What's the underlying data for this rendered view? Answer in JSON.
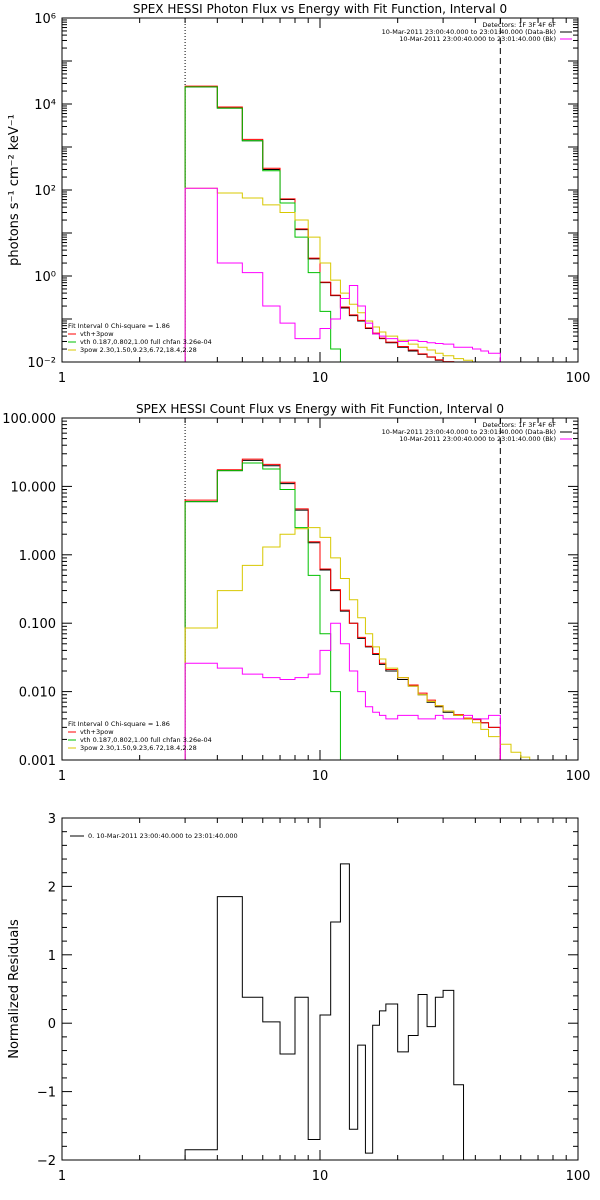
{
  "chart_data": [
    {
      "type": "line",
      "title": "SPEX HESSI Photon Flux vs Energy with Fit Function, Interval 0",
      "ylabel": "photons s⁻¹ cm⁻² keV⁻¹",
      "xlabel": "",
      "x_scale": "log",
      "y_scale": "log",
      "xlim": [
        1,
        100
      ],
      "ylim": [
        0.01,
        1000000
      ],
      "x_ticks": [
        1,
        10,
        100
      ],
      "x_tick_labels": [
        "1",
        "10",
        "100"
      ],
      "y_ticks": [
        0.01,
        1,
        100,
        10000,
        1000000
      ],
      "y_tick_labels": [
        "10⁻²",
        "10⁰",
        "10²",
        "10⁴",
        "10⁶"
      ],
      "vlines": [
        {
          "x": 3,
          "style": "dotted"
        },
        {
          "x": 50,
          "style": "dashed"
        }
      ],
      "legend_top_right": [
        {
          "text": "Detectors: 1F 3F 4F 6F",
          "color": "#000000"
        },
        {
          "text": "10-Mar-2011 23:00:40.000 to 23:01:40.000 (Data-Bk)",
          "color": "#000000"
        },
        {
          "text": "10-Mar-2011 23:00:40.000 to 23:01:40.000 (Bk)",
          "color": "#ff00ff"
        }
      ],
      "legend_bottom_left": [
        {
          "text": "Fit Interval 0   Chi-square = 1.86",
          "color": "#000000"
        },
        {
          "text": "vth+3pow",
          "color": "#ff0000"
        },
        {
          "text": "vth 0.187,0.802,1.00  full chfan 3.26e-04",
          "color": "#00c000"
        },
        {
          "text": "3pow 2.30,1.50,9.23,6.72,18.4,2.28",
          "color": "#d8c800"
        }
      ],
      "edges": [
        3,
        4,
        5,
        6,
        7,
        8,
        9,
        10,
        11,
        12,
        13,
        14,
        15,
        16,
        17,
        18,
        20,
        22,
        24,
        26,
        28,
        30,
        33,
        36,
        39,
        42,
        45,
        50,
        55,
        60
      ],
      "series": [
        {
          "name": "data-bk",
          "color": "#000000",
          "values": [
            25000,
            8000,
            1400,
            300,
            60,
            12,
            2.5,
            0.7,
            0.35,
            0.18,
            0.12,
            0.09,
            0.06,
            0.045,
            0.035,
            0.028,
            0.022,
            0.018,
            0.015,
            0.013,
            0.011,
            0.01,
            0.01,
            0.01
          ]
        },
        {
          "name": "vth+3pow",
          "color": "#ff0000",
          "values": [
            26000,
            8500,
            1500,
            320,
            62,
            12.5,
            2.6,
            0.72,
            0.36,
            0.19,
            0.125,
            0.093,
            0.062,
            0.047,
            0.036,
            0.029,
            0.023,
            0.019,
            0.0155,
            0.0132,
            0.0113,
            0.0102,
            0.01,
            0.01
          ]
        },
        {
          "name": "vth",
          "color": "#00c000",
          "values": [
            25000,
            8000,
            1400,
            280,
            50,
            8,
            1.2,
            0.15,
            0.02,
            0.01
          ]
        },
        {
          "name": "3pow",
          "color": "#d8c800",
          "values": [
            110,
            85,
            65,
            45,
            30,
            20,
            8,
            2,
            0.8,
            0.4,
            0.22,
            0.14,
            0.09,
            0.065,
            0.05,
            0.04,
            0.032,
            0.026,
            0.022,
            0.019,
            0.016,
            0.014,
            0.012,
            0.011,
            0.01,
            0.01,
            0.01,
            0.01,
            0.01
          ]
        },
        {
          "name": "background",
          "color": "#ff00ff",
          "values": [
            110,
            2,
            1.2,
            0.2,
            0.08,
            0.035,
            0.035,
            0.06,
            0.1,
            0.3,
            0.6,
            0.2,
            0.08,
            0.045,
            0.04,
            0.035,
            0.03,
            0.032,
            0.03,
            0.028,
            0.027,
            0.026,
            0.022,
            0.022,
            0.02,
            0.018,
            0.016
          ]
        }
      ]
    },
    {
      "type": "line",
      "title": "SPEX HESSI Count Flux vs Energy with Fit Function, Interval 0",
      "ylabel": "",
      "xlabel": "",
      "x_scale": "log",
      "y_scale": "log",
      "xlim": [
        1,
        100
      ],
      "ylim": [
        0.001,
        100
      ],
      "x_ticks": [
        1,
        10,
        100
      ],
      "x_tick_labels": [
        "1",
        "10",
        "100"
      ],
      "y_ticks": [
        0.001,
        0.01,
        0.1,
        1,
        10,
        100
      ],
      "y_tick_labels": [
        "0.001",
        "0.010",
        "0.100",
        "1.000",
        "10.000",
        "100.000"
      ],
      "vlines": [
        {
          "x": 3,
          "style": "dotted"
        },
        {
          "x": 50,
          "style": "dashed"
        }
      ],
      "legend_top_right": [
        {
          "text": "Detectors: 1F 3F 4F 6F",
          "color": "#000000"
        },
        {
          "text": "10-Mar-2011 23:00:40.000 to 23:01:40.000 (Data-Bk)",
          "color": "#000000"
        },
        {
          "text": "10-Mar-2011 23:00:40.000 to 23:01:40.000 (Bk)",
          "color": "#ff00ff"
        }
      ],
      "legend_bottom_left": [
        {
          "text": "Fit Interval 0   Chi-square = 1.86",
          "color": "#000000"
        },
        {
          "text": "vth+3pow",
          "color": "#ff0000"
        },
        {
          "text": "vth 0.187,0.802,1.00  full chfan 3.26e-04",
          "color": "#00c000"
        },
        {
          "text": "3pow 2.30,1.50,9.23,6.72,18.4,2.28",
          "color": "#d8c800"
        }
      ],
      "edges": [
        3,
        4,
        5,
        6,
        7,
        8,
        9,
        10,
        11,
        12,
        13,
        14,
        15,
        16,
        17,
        18,
        20,
        22,
        24,
        26,
        28,
        30,
        33,
        36,
        39,
        42,
        45,
        50,
        55,
        60,
        65,
        70,
        80,
        90
      ],
      "series": [
        {
          "name": "data-bk",
          "color": "#000000",
          "values": [
            6,
            17,
            24,
            20,
            11,
            4.5,
            1.5,
            0.6,
            0.3,
            0.15,
            0.1,
            0.06,
            0.045,
            0.035,
            0.025,
            0.02,
            0.015,
            0.012,
            0.009,
            0.007,
            0.006,
            0.005,
            0.0045,
            0.004,
            0.004,
            0.0035,
            0.003
          ]
        },
        {
          "name": "vth+3pow",
          "color": "#ff0000",
          "values": [
            6.3,
            17.5,
            25,
            21,
            11.5,
            4.7,
            1.55,
            0.62,
            0.31,
            0.155,
            0.1,
            0.062,
            0.046,
            0.036,
            0.026,
            0.021,
            0.016,
            0.0125,
            0.0095,
            0.0075,
            0.0062,
            0.0052,
            0.0046,
            0.0041,
            0.0039,
            0.0035,
            0.003
          ]
        },
        {
          "name": "vth",
          "color": "#00c000",
          "values": [
            6,
            17,
            22,
            18,
            9,
            2.5,
            0.5,
            0.07,
            0.01,
            0.001
          ]
        },
        {
          "name": "3pow",
          "color": "#d8c800",
          "values": [
            0.085,
            0.3,
            0.7,
            1.3,
            2,
            2.4,
            2.5,
            1.8,
            0.9,
            0.45,
            0.22,
            0.12,
            0.07,
            0.045,
            0.03,
            0.022,
            0.016,
            0.012,
            0.009,
            0.0072,
            0.0062,
            0.0052,
            0.0045,
            0.004,
            0.0035,
            0.0028,
            0.0022,
            0.0017,
            0.0013,
            0.0011,
            0.001,
            0.001,
            0.001
          ]
        },
        {
          "name": "background",
          "color": "#ff00ff",
          "values": [
            0.026,
            0.022,
            0.018,
            0.016,
            0.015,
            0.016,
            0.018,
            0.04,
            0.1,
            0.05,
            0.02,
            0.01,
            0.006,
            0.005,
            0.0045,
            0.004,
            0.0045,
            0.0045,
            0.004,
            0.004,
            0.0045,
            0.004,
            0.004,
            0.0045,
            0.004,
            0.004,
            0.0045
          ]
        }
      ]
    },
    {
      "type": "line",
      "title": "",
      "ylabel": "Normalized Residuals",
      "xlabel": "",
      "x_scale": "log",
      "y_scale": "linear",
      "xlim": [
        1,
        100
      ],
      "ylim": [
        -2,
        3
      ],
      "x_ticks": [
        1,
        10,
        100
      ],
      "x_tick_labels": [
        "1",
        "10",
        "100"
      ],
      "y_ticks": [
        -2,
        -1,
        0,
        1,
        2,
        3
      ],
      "y_tick_labels": [
        "−2",
        "−1",
        "0",
        "1",
        "2",
        "3"
      ],
      "legend_top_left": [
        {
          "text": "0. 10-Mar-2011 23:00:40.000 to 23:01:40.000",
          "color": "#000000"
        }
      ],
      "edges": [
        3,
        4,
        5,
        6,
        7,
        8,
        9,
        10,
        11,
        12,
        13,
        14,
        15,
        16,
        17,
        18,
        20,
        22,
        24,
        26,
        28,
        30,
        33,
        36,
        39,
        42,
        45,
        50
      ],
      "series": [
        {
          "name": "residuals",
          "color": "#000000",
          "values": [
            -1.85,
            1.85,
            0.38,
            0.02,
            -0.45,
            0.38,
            -1.7,
            0.12,
            1.48,
            2.33,
            -1.55,
            -0.32,
            -1.9,
            -0.03,
            0.18,
            0.28,
            -0.42,
            -0.18,
            0.42,
            -0.05,
            0.38,
            0.48,
            -0.9
          ]
        }
      ]
    }
  ]
}
